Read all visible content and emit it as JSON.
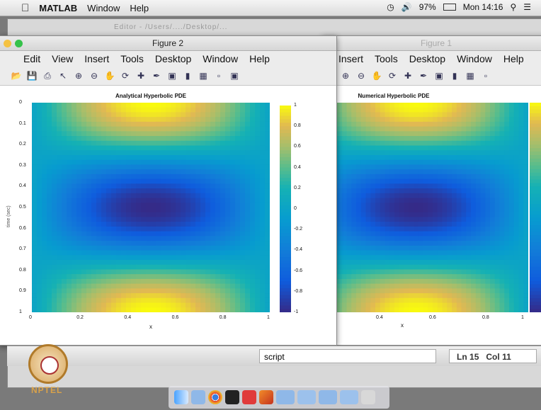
{
  "menubar": {
    "app": "MATLAB",
    "items": [
      "Window",
      "Help"
    ],
    "battery": "97%",
    "clock": "Mon 14:16"
  },
  "back_window": {
    "title_hint": "Editor - /Users/..../Desktop/..."
  },
  "figure2": {
    "title": "Figure 2",
    "menu": [
      "Edit",
      "View",
      "Insert",
      "Tools",
      "Desktop",
      "Window",
      "Help"
    ]
  },
  "figure1": {
    "title": "Figure 1",
    "menu": [
      "Insert",
      "Tools",
      "Desktop",
      "Window",
      "Help"
    ]
  },
  "statusbar": {
    "script": "script",
    "ln_label": "Ln",
    "ln": "15",
    "col_label": "Col",
    "col": "11"
  },
  "branding": {
    "nptel": "NPTEL"
  },
  "chart_data": [
    {
      "type": "heatmap",
      "title": "Analytical Hyperbolic PDE",
      "xlabel": "x",
      "ylabel": "time (sec)",
      "x_ticks": [
        "0",
        "0.2",
        "0.4",
        "0.6",
        "0.8",
        "1"
      ],
      "y_ticks": [
        "0",
        "0.1",
        "0.2",
        "0.3",
        "0.4",
        "0.5",
        "0.6",
        "0.7",
        "0.8",
        "0.9",
        "1"
      ],
      "colorbar_ticks": [
        "1",
        "0.8",
        "0.6",
        "0.4",
        "0.2",
        "0",
        "-0.2",
        "-0.4",
        "-0.6",
        "-0.8",
        "-1"
      ],
      "xlim": [
        0,
        1
      ],
      "ylim": [
        0,
        1
      ],
      "clim": [
        -1,
        1
      ],
      "colormap": "parula"
    },
    {
      "type": "heatmap",
      "title": "Numerical Hyperbolic PDE",
      "x_ticks": [
        "0.4",
        "0.6",
        "0.8",
        "1"
      ],
      "xlabel": "x",
      "clim": [
        -1,
        1
      ],
      "colormap": "parula"
    }
  ]
}
